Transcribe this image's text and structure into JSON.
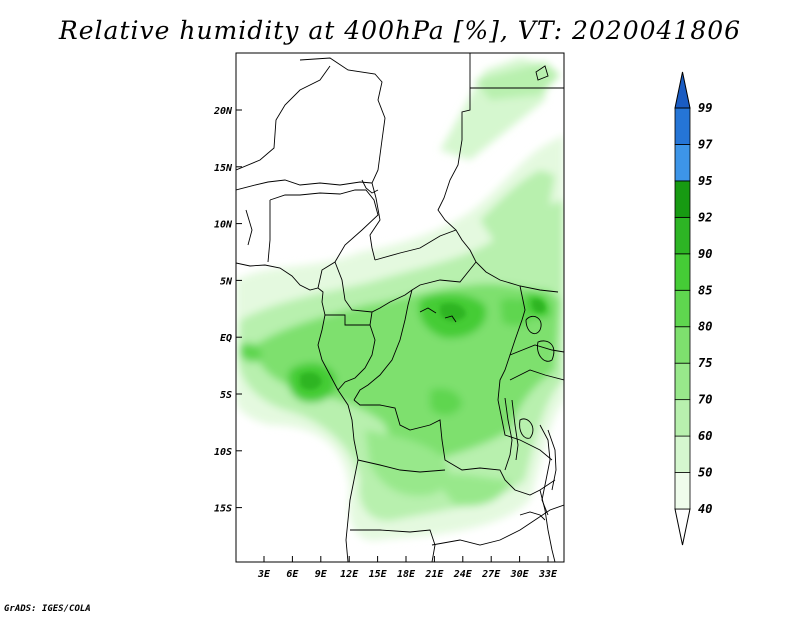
{
  "title": "Relative humidity at 400hPa [%], VT: 2020041806",
  "footer": "GrADS: IGES/COLA",
  "map": {
    "lat_ticks": [
      "20N",
      "15N",
      "10N",
      "5N",
      "EQ",
      "5S",
      "10S",
      "15S"
    ],
    "lon_ticks": [
      "3E",
      "6E",
      "9E",
      "12E",
      "15E",
      "18E",
      "21E",
      "24E",
      "27E",
      "30E",
      "33E"
    ],
    "field_variable": "relative humidity",
    "field_units": "%",
    "pressure_level": "400hPa"
  },
  "colorbar": {
    "levels": [
      "40",
      "50",
      "60",
      "70",
      "75",
      "80",
      "85",
      "90",
      "92",
      "95",
      "97",
      "99"
    ],
    "colors": [
      "#effcec",
      "#d5f7cf",
      "#b8f0ae",
      "#98e88b",
      "#7ee06e",
      "#5fd64f",
      "#45cc36",
      "#2db524",
      "#179a12",
      "#3d95e8",
      "#2575d6",
      "#1a5cc2"
    ]
  }
}
